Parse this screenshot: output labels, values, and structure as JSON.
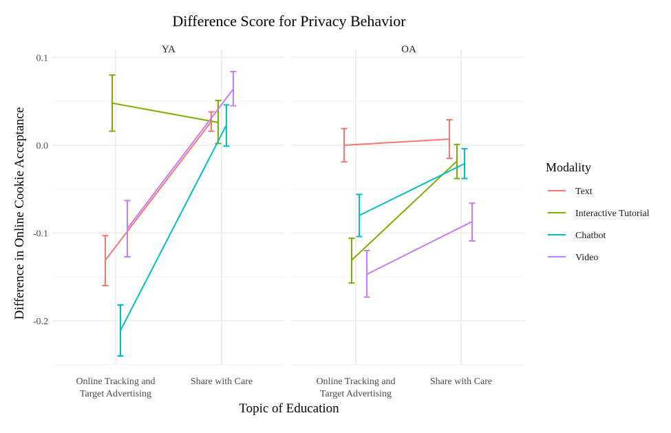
{
  "chart_data": {
    "type": "line",
    "title": "Difference Score for Privacy Behavior",
    "xlabel": "Topic of Education",
    "ylabel": "Difference in Online Cookie Acceptance",
    "ylim": [
      -0.25,
      0.1
    ],
    "yticks": [
      "0.1",
      "0.0",
      "-0.1",
      "-0.2"
    ],
    "ytick_values": [
      0.1,
      0.0,
      -0.1,
      -0.2
    ],
    "categories": [
      [
        "Online Tracking and",
        "Target Advertising"
      ],
      [
        "Share with Care"
      ]
    ],
    "legend": {
      "title": "Modality",
      "placement": "right"
    },
    "grid": true,
    "panels": [
      {
        "label": "YA",
        "series": [
          {
            "name": "Text",
            "y": [
              -0.131,
              0.027
            ],
            "lo": [
              -0.16,
              0.016
            ],
            "hi": [
              -0.103,
              0.038
            ]
          },
          {
            "name": "Interactive Tutorial",
            "y": [
              0.048,
              0.026
            ],
            "lo": [
              0.016,
              0.002
            ],
            "hi": [
              0.08,
              0.051
            ]
          },
          {
            "name": "Chatbot",
            "y": [
              -0.211,
              0.023
            ],
            "lo": [
              -0.24,
              -0.001
            ],
            "hi": [
              -0.182,
              0.046
            ]
          },
          {
            "name": "Video",
            "y": [
              -0.095,
              0.064
            ],
            "lo": [
              -0.127,
              0.045
            ],
            "hi": [
              -0.063,
              0.084
            ]
          }
        ]
      },
      {
        "label": "OA",
        "series": [
          {
            "name": "Text",
            "y": [
              0.0,
              0.007
            ],
            "lo": [
              -0.019,
              -0.015
            ],
            "hi": [
              0.019,
              0.029
            ]
          },
          {
            "name": "Interactive Tutorial",
            "y": [
              -0.131,
              -0.018
            ],
            "lo": [
              -0.157,
              -0.038
            ],
            "hi": [
              -0.106,
              0.001
            ]
          },
          {
            "name": "Chatbot",
            "y": [
              -0.08,
              -0.021
            ],
            "lo": [
              -0.104,
              -0.038
            ],
            "hi": [
              -0.056,
              -0.004
            ]
          },
          {
            "name": "Video",
            "y": [
              -0.147,
              -0.087
            ],
            "lo": [
              -0.173,
              -0.109
            ],
            "hi": [
              -0.12,
              -0.066
            ]
          }
        ]
      }
    ],
    "colors": {
      "Text": "#F8766D",
      "Interactive Tutorial": "#7CAE00",
      "Chatbot": "#00BFC4",
      "Video": "#C77CFF"
    }
  }
}
